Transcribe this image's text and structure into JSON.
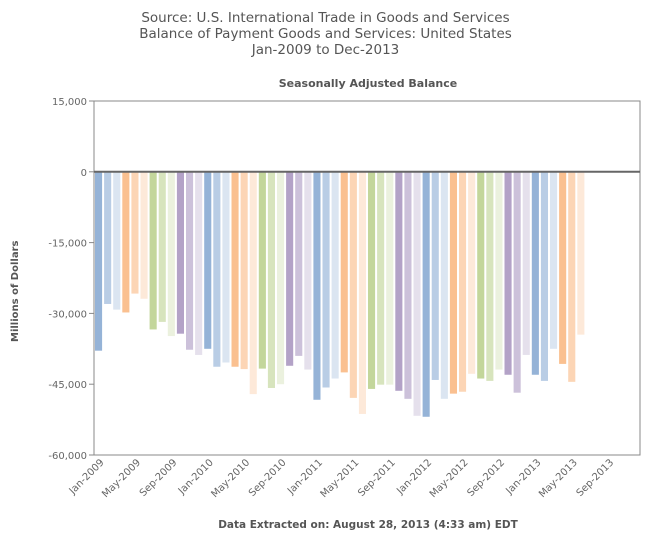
{
  "titles": [
    "Source: U.S. International Trade in Goods and Services",
    "Balance of Payment Goods and Services: United States",
    "Jan-2009 to Dec-2013"
  ],
  "footer": "Data Extracted on: August 28, 2013 (4:33 am) EDT",
  "chart_data": {
    "type": "bar",
    "title": "Seasonally Adjusted Balance",
    "xlabel": "",
    "ylabel": "Millions of Dollars",
    "ylim": [
      -60000,
      15000
    ],
    "yticks": [
      15000,
      0,
      -15000,
      -30000,
      -45000,
      -60000
    ],
    "ytick_labels": [
      "15,000",
      "0",
      "-15,000",
      "-30,000",
      "-45,000",
      "-60,000"
    ],
    "xtick_labels": [
      "Jan-2009",
      "May-2009",
      "Sep-2009",
      "Jan-2010",
      "May-2010",
      "Sep-2010",
      "Jan-2011",
      "May-2011",
      "Sep-2011",
      "Jan-2012",
      "May-2012",
      "Sep-2012",
      "Jan-2013",
      "May-2013",
      "Sep-2013"
    ],
    "grid": false,
    "legend": "none",
    "categories": [
      "Jan-2009",
      "Feb-2009",
      "Mar-2009",
      "Apr-2009",
      "May-2009",
      "Jun-2009",
      "Jul-2009",
      "Aug-2009",
      "Sep-2009",
      "Oct-2009",
      "Nov-2009",
      "Dec-2009",
      "Jan-2010",
      "Feb-2010",
      "Mar-2010",
      "Apr-2010",
      "May-2010",
      "Jun-2010",
      "Jul-2010",
      "Aug-2010",
      "Sep-2010",
      "Oct-2010",
      "Nov-2010",
      "Dec-2010",
      "Jan-2011",
      "Feb-2011",
      "Mar-2011",
      "Apr-2011",
      "May-2011",
      "Jun-2011",
      "Jul-2011",
      "Aug-2011",
      "Sep-2011",
      "Oct-2011",
      "Nov-2011",
      "Dec-2011",
      "Jan-2012",
      "Feb-2012",
      "Mar-2012",
      "Apr-2012",
      "May-2012",
      "Jun-2012",
      "Jul-2012",
      "Aug-2012",
      "Sep-2012",
      "Oct-2012",
      "Nov-2012",
      "Dec-2012",
      "Jan-2013",
      "Feb-2013",
      "Mar-2013",
      "Apr-2013",
      "May-2013",
      "Jun-2013"
    ],
    "values": [
      -37900,
      -28000,
      -29200,
      -29800,
      -25800,
      -26900,
      -33400,
      -31800,
      -34800,
      -34300,
      -37700,
      -38800,
      -37500,
      -41300,
      -40400,
      -41300,
      -41800,
      -47100,
      -41700,
      -45800,
      -45000,
      -41100,
      -39000,
      -41900,
      -48300,
      -45700,
      -43800,
      -42500,
      -47900,
      -51300,
      -46000,
      -45100,
      -45100,
      -46400,
      -48100,
      -51700,
      -51900,
      -44100,
      -48100,
      -47000,
      -46600,
      -42800,
      -43800,
      -44300,
      -41900,
      -43000,
      -46800,
      -38800,
      -43000,
      -44300,
      -37500,
      -40700,
      -44500,
      -34500
    ],
    "month_colors": [
      "#95b3d7",
      "#b9cde5",
      "#dbe5f1",
      "#fac090",
      "#fcd5b5",
      "#fde9d9",
      "#c3d69b",
      "#d7e4bd",
      "#ebf1de",
      "#b3a2c7",
      "#ccc1da",
      "#e5e0ec"
    ],
    "zero_line_color": "#666666"
  }
}
